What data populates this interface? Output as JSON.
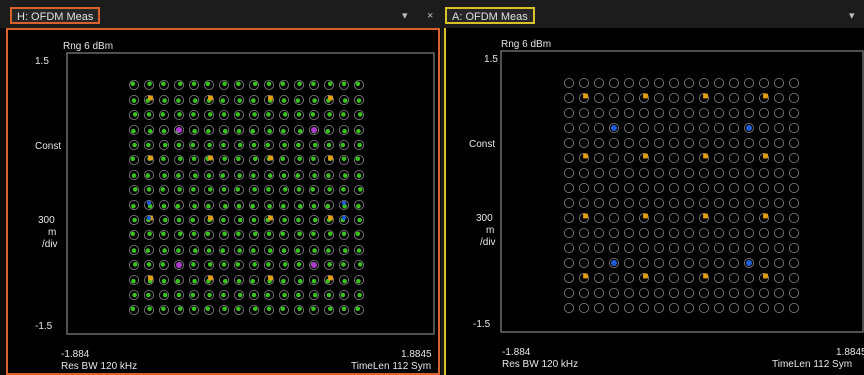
{
  "panes": [
    {
      "tab": "H: OFDM Meas",
      "controls": {
        "menu": "▾",
        "close": "×"
      },
      "range": "Rng 6 dBm",
      "ytop": "1.5",
      "ylabel": "Const",
      "scale_value": "300",
      "scale_unit": "m",
      "scale_per": "/div",
      "ybottom": "-1.5",
      "xleft": "-1.884",
      "xright": "1.8845",
      "resbw": "Res BW 120 kHz",
      "timelen": "TimeLen 112  Sym",
      "show_points": true
    },
    {
      "tab": "A: OFDM Meas",
      "controls": {
        "menu": "▾"
      },
      "range": "Rng 6 dBm",
      "ytop": "1.5",
      "ylabel": "Const",
      "scale_value": "300",
      "scale_unit": "m",
      "scale_per": "/div",
      "ybottom": "-1.5",
      "xleft": "-1.884",
      "xright": "1.8845",
      "resbw": "Res BW 120 kHz",
      "timelen": "TimeLen 112  Sym",
      "show_points": false
    }
  ],
  "constellation": {
    "grid": 16,
    "colors": {
      "ring": "#888888",
      "data_point": "#39c21e",
      "pilot": "#e2a010",
      "blue_marker": "#1e5fd8",
      "magenta_marker": "#b03ad0",
      "frame": "#7a7a7a"
    }
  }
}
